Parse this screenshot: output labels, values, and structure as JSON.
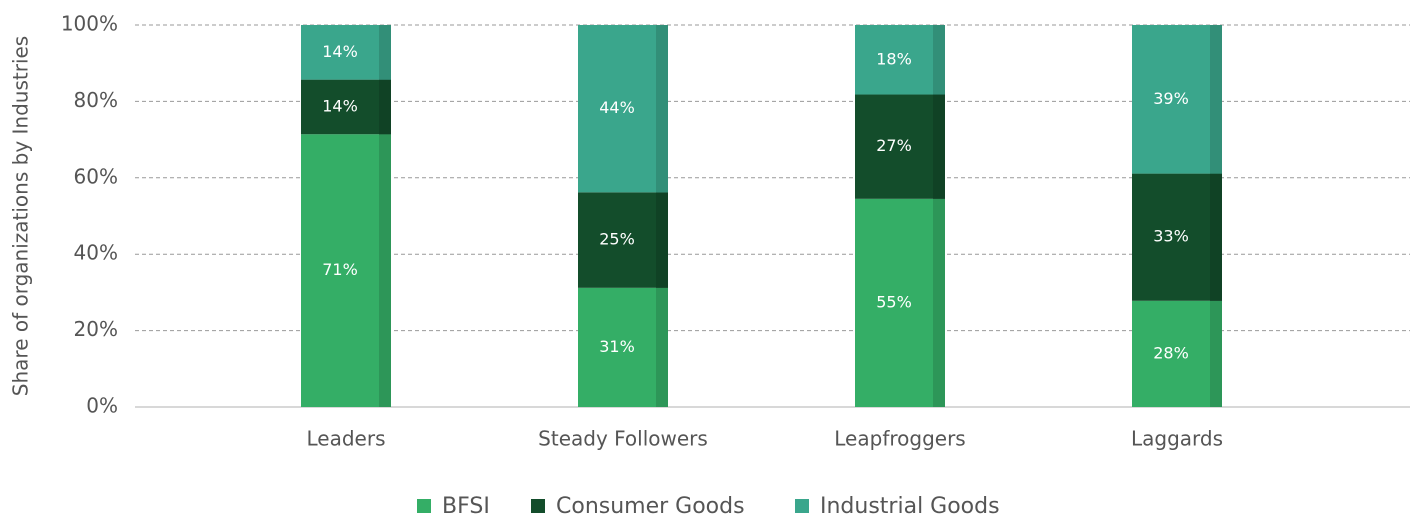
{
  "chart_data": {
    "type": "stacked_bar",
    "ylabel": "Share of organizations by Industries",
    "categories": [
      "Leaders",
      "Steady Followers",
      "Leapfroggers",
      "Laggards"
    ],
    "series": [
      {
        "name": "BFSI",
        "color": "#34ae66",
        "values": [
          71.4,
          31.2,
          54.5,
          27.8
        ],
        "value_labels": [
          "71%",
          "31%",
          "55%",
          "28%"
        ]
      },
      {
        "name": "Consumer Goods",
        "color": "#134d2b",
        "values": [
          14.3,
          25,
          27.3,
          33.3
        ],
        "value_labels": [
          "14%",
          "25%",
          "27%",
          "33%"
        ]
      },
      {
        "name": "Industrial Goods",
        "color": "#3aa68c",
        "values": [
          14.3,
          43.8,
          18.2,
          38.9
        ],
        "value_labels": [
          "14%",
          "44%",
          "18%",
          "39%"
        ]
      }
    ],
    "ylim": [
      0,
      100
    ],
    "yticks": [
      {
        "value": 0,
        "label": "0%"
      },
      {
        "value": 20,
        "label": "20%"
      },
      {
        "value": 40,
        "label": "40%"
      },
      {
        "value": 60,
        "label": "60%"
      },
      {
        "value": 80,
        "label": "80%"
      },
      {
        "value": 100,
        "label": "100%"
      }
    ],
    "grid": true,
    "legend": "bottom"
  }
}
